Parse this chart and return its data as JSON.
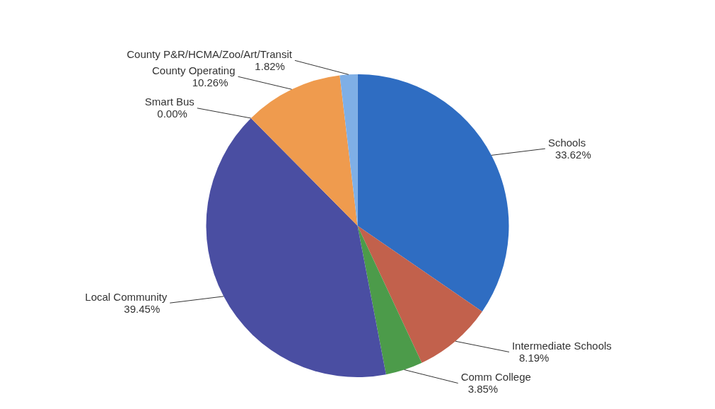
{
  "chart_data": {
    "type": "pie",
    "categories": [
      "Schools",
      "Intermediate Schools",
      "Comm College",
      "Local Community",
      "Smart Bus",
      "County Operating",
      "County P&R/HCMA/Zoo/Art/Transit"
    ],
    "values": [
      33.62,
      8.19,
      3.85,
      39.45,
      0.0,
      10.26,
      1.82
    ],
    "value_labels": [
      "33.62%",
      "8.19%",
      "3.85%",
      "39.45%",
      "0.00%",
      "10.26%",
      "1.82%"
    ],
    "colors": [
      "#2f6dc2",
      "#c2614c",
      "#4c9b4a",
      "#4a4ea2",
      "#8a8a8a",
      "#ef9b4e",
      "#7fafe6"
    ],
    "legend": false
  }
}
